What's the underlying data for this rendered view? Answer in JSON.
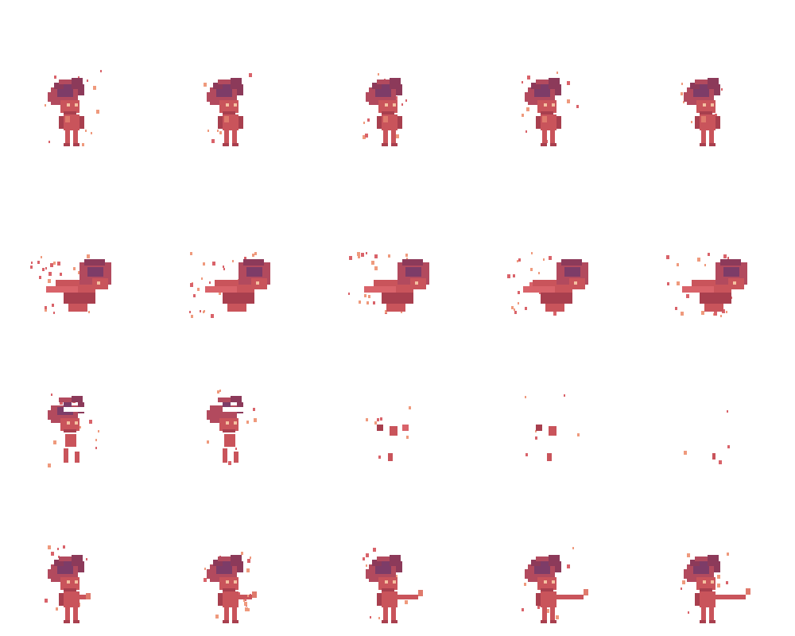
{
  "sheet": {
    "rows": 4,
    "cols": 5,
    "palette": {
      "body": "#c9545b",
      "body_light": "#df7a6c",
      "body_dark": "#a83f4e",
      "hair": "#b24a5e",
      "hair_dark": "#8c3a5a",
      "hair_purple": "#7d3c68",
      "eye": "#f4c0a0",
      "flame": "#d9636a",
      "flame_light": "#ef9a7d",
      "highlight": "#ffffff"
    },
    "animations": [
      {
        "name": "idle",
        "frames": [
          {
            "pose": "idle",
            "sparks": 1.0
          },
          {
            "pose": "idle",
            "sparks": 1.0
          },
          {
            "pose": "idle",
            "sparks": 1.0
          },
          {
            "pose": "idle",
            "sparks": 1.0
          },
          {
            "pose": "idle",
            "sparks": 1.0
          }
        ]
      },
      {
        "name": "dash",
        "frames": [
          {
            "pose": "dash",
            "sparks": 1.0
          },
          {
            "pose": "dash",
            "sparks": 1.0
          },
          {
            "pose": "dash",
            "sparks": 1.0
          },
          {
            "pose": "dash",
            "sparks": 1.0
          },
          {
            "pose": "dash",
            "sparks": 1.0
          }
        ]
      },
      {
        "name": "dissolve",
        "frames": [
          {
            "pose": "dissolve",
            "level": 0.15
          },
          {
            "pose": "dissolve",
            "level": 0.35
          },
          {
            "pose": "dissolve",
            "level": 0.65
          },
          {
            "pose": "dissolve",
            "level": 0.85
          },
          {
            "pose": "dissolve",
            "level": 0.97
          }
        ]
      },
      {
        "name": "attack",
        "frames": [
          {
            "pose": "attack",
            "arm": 0.0
          },
          {
            "pose": "attack",
            "arm": 0.3
          },
          {
            "pose": "attack",
            "arm": 0.6
          },
          {
            "pose": "attack",
            "arm": 0.85
          },
          {
            "pose": "attack",
            "arm": 1.0
          }
        ]
      }
    ]
  }
}
